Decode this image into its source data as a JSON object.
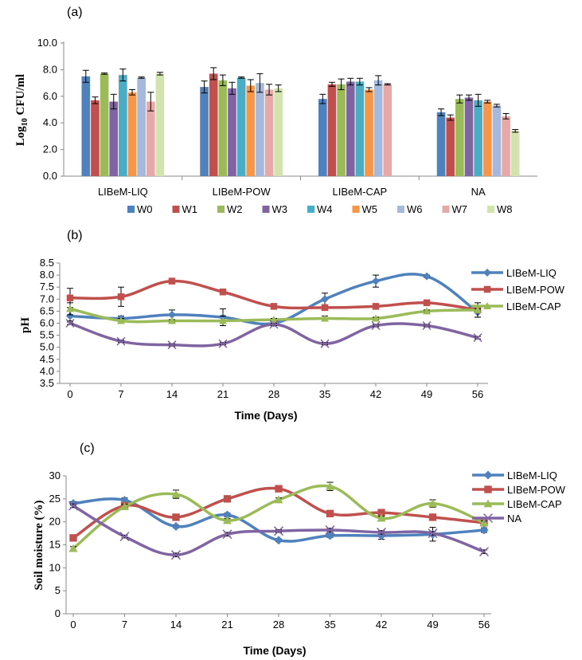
{
  "chart_data": [
    {
      "panel": "(a)",
      "type": "bar",
      "ylabel_prefix": "Log",
      "ylabel_sub": "10",
      "ylabel_suffix": " CFU/ml",
      "ylim": [
        0,
        10
      ],
      "yticks": [
        "0.0",
        "2.0",
        "4.0",
        "6.0",
        "8.0",
        "10.0"
      ],
      "categories": [
        "LIBeM-LIQ",
        "LIBeM-POW",
        "LIBeM-CAP",
        "NA"
      ],
      "series": [
        {
          "name": "W0",
          "color": "#4f81bd",
          "values": [
            7.5,
            6.7,
            5.8,
            4.8
          ],
          "errors": [
            0.45,
            0.45,
            0.35,
            0.25
          ]
        },
        {
          "name": "W1",
          "color": "#c0504d",
          "values": [
            5.7,
            7.7,
            6.9,
            4.4
          ],
          "errors": [
            0.25,
            0.45,
            0.15,
            0.2
          ]
        },
        {
          "name": "W2",
          "color": "#9bbb59",
          "values": [
            7.7,
            7.2,
            6.9,
            5.8
          ],
          "errors": [
            0.05,
            0.4,
            0.4,
            0.3
          ]
        },
        {
          "name": "W3",
          "color": "#8064a2",
          "values": [
            5.6,
            6.6,
            7.1,
            5.9
          ],
          "errors": [
            0.55,
            0.45,
            0.25,
            0.2
          ]
        },
        {
          "name": "W4",
          "color": "#4bacc6",
          "values": [
            7.6,
            7.4,
            7.1,
            5.7
          ],
          "errors": [
            0.45,
            0.05,
            0.25,
            0.45
          ]
        },
        {
          "name": "W5",
          "color": "#f79646",
          "values": [
            6.3,
            6.8,
            6.5,
            5.6
          ],
          "errors": [
            0.2,
            0.45,
            0.15,
            0.1
          ]
        },
        {
          "name": "W6",
          "color": "#a5b9dd",
          "values": [
            7.4,
            7.0,
            7.2,
            5.3
          ],
          "errors": [
            0.05,
            0.7,
            0.35,
            0.1
          ]
        },
        {
          "name": "W7",
          "color": "#e6a9a8",
          "values": [
            5.6,
            6.5,
            6.9,
            4.5
          ],
          "errors": [
            0.7,
            0.4,
            0.05,
            0.2
          ]
        },
        {
          "name": "W8",
          "color": "#d2e3b0",
          "values": [
            7.7,
            6.6,
            null,
            3.4
          ],
          "errors": [
            0.1,
            0.25,
            0,
            0.1
          ]
        }
      ]
    },
    {
      "panel": "(b)",
      "type": "line",
      "ylabel": "pH",
      "xlabel": "Time (Days)",
      "x": [
        0,
        7,
        14,
        21,
        28,
        35,
        42,
        49,
        56
      ],
      "ylim": [
        3.5,
        8.5
      ],
      "yticks": [
        "3.5",
        "4.0",
        "4.5",
        "5.0",
        "5.5",
        "6.0",
        "6.5",
        "7.0",
        "7.5",
        "8.0",
        "8.5"
      ],
      "series": [
        {
          "name": "LIBeM-LIQ",
          "color": "#4f81bd",
          "marker": "diamond",
          "legend": true,
          "values": [
            6.3,
            6.2,
            6.35,
            6.25,
            6.0,
            7.0,
            7.75,
            7.95,
            6.45
          ],
          "errors": [
            0.2,
            0.1,
            0.2,
            0.35,
            0.1,
            0.25,
            0.25,
            0.05,
            0.2
          ]
        },
        {
          "name": "LIBeM-POW",
          "color": "#c0504d",
          "marker": "square",
          "legend": true,
          "values": [
            7.05,
            7.1,
            7.75,
            7.3,
            6.7,
            6.65,
            6.7,
            6.85,
            6.55
          ],
          "errors": [
            0.4,
            0.4,
            0.05,
            0.1,
            0.05,
            0.1,
            0.05,
            0.1,
            0.3
          ]
        },
        {
          "name": "LIBeM-CAP",
          "color": "#9bbb59",
          "marker": "triangle",
          "legend": true,
          "values": [
            6.6,
            6.1,
            6.1,
            6.1,
            6.15,
            6.2,
            6.2,
            6.5,
            6.55
          ],
          "errors": [
            0.25,
            0.1,
            0.05,
            0.2,
            0.05,
            0.1,
            0.05,
            0.05,
            0.05
          ]
        },
        {
          "name": "NA",
          "color": "#8064a2",
          "marker": "x",
          "legend": false,
          "values": [
            6.0,
            5.25,
            5.1,
            5.15,
            5.95,
            5.15,
            5.9,
            5.9,
            5.4
          ],
          "errors": [
            0.05,
            0.05,
            0.05,
            0.05,
            0.05,
            0.05,
            0.05,
            0.05,
            0.05
          ]
        }
      ]
    },
    {
      "panel": "(c)",
      "type": "line",
      "ylabel": "Soil moisture (%)",
      "xlabel": "Time (Days)",
      "x": [
        0,
        7,
        14,
        21,
        28,
        35,
        42,
        49,
        56
      ],
      "ylim": [
        0,
        30
      ],
      "yticks": [
        "0",
        "5",
        "10",
        "15",
        "20",
        "25",
        "30"
      ],
      "series": [
        {
          "name": "LIBeM-LIQ",
          "color": "#4f81bd",
          "marker": "diamond",
          "legend": true,
          "values": [
            24.0,
            24.7,
            19.0,
            21.5,
            16.0,
            17.0,
            17.0,
            17.3,
            18.2
          ],
          "errors": [
            0.4,
            0.5,
            0.3,
            0.4,
            0.3,
            0.4,
            0.8,
            1.5,
            0.5
          ]
        },
        {
          "name": "LIBeM-POW",
          "color": "#c0504d",
          "marker": "square",
          "legend": true,
          "values": [
            16.5,
            23.5,
            21.0,
            25.0,
            27.2,
            21.8,
            22.0,
            21.0,
            19.8
          ],
          "errors": [
            0.5,
            0.5,
            0.5,
            0.4,
            0.5,
            0.4,
            0.5,
            0.4,
            0.5
          ]
        },
        {
          "name": "LIBeM-CAP",
          "color": "#9bbb59",
          "marker": "triangle",
          "legend": true,
          "values": [
            14.2,
            23.3,
            26.0,
            20.3,
            24.8,
            27.7,
            20.8,
            24.0,
            19.8
          ],
          "errors": [
            0.4,
            0.5,
            0.9,
            0.4,
            0.4,
            0.9,
            0.4,
            0.8,
            0.4
          ]
        },
        {
          "name": "NA",
          "color": "#8064a2",
          "marker": "x",
          "legend": true,
          "values": [
            23.5,
            16.8,
            12.8,
            17.3,
            18.0,
            18.2,
            17.7,
            17.5,
            13.5
          ],
          "errors": [
            0.4,
            0.3,
            0.4,
            0.4,
            0.3,
            0.4,
            0.4,
            0.4,
            0.4
          ]
        }
      ]
    }
  ]
}
